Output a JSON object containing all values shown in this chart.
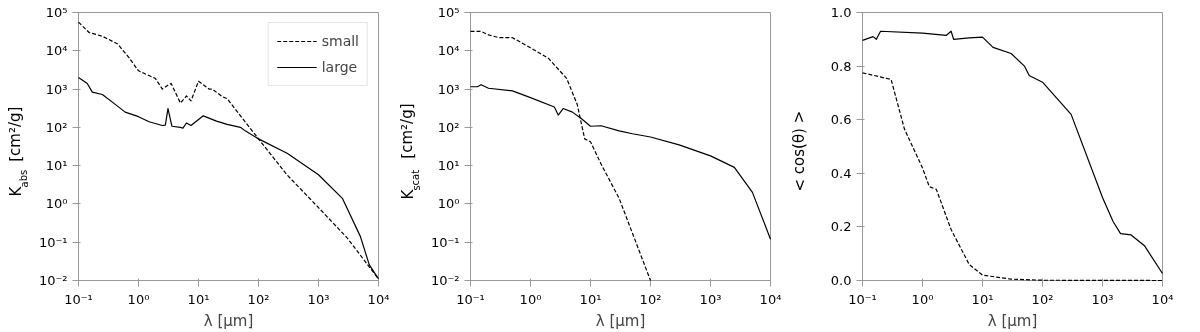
{
  "chart_data": [
    {
      "type": "line",
      "xlabel": "λ [μm]",
      "ylabel": "K$_{abs}$ [cm²/g]",
      "log": "xy",
      "legend": "top right",
      "xlim": [
        0.1,
        10000
      ],
      "ylim": [
        0.01,
        100000
      ],
      "xticks": [
        {
          "value": 0.1,
          "label": "10⁻¹"
        },
        {
          "value": 1,
          "label": "10⁰"
        },
        {
          "value": 10,
          "label": "10¹"
        },
        {
          "value": 100,
          "label": "10²"
        },
        {
          "value": 1000,
          "label": "10³"
        },
        {
          "value": 10000,
          "label": "10⁴"
        }
      ],
      "yticks": [
        {
          "value": 0.01,
          "label": "10⁻²"
        },
        {
          "value": 0.1,
          "label": "10⁻¹"
        },
        {
          "value": 1,
          "label": "10⁰"
        },
        {
          "value": 10,
          "label": "10¹"
        },
        {
          "value": 100,
          "label": "10²"
        },
        {
          "value": 1000,
          "label": "10³"
        },
        {
          "value": 10000,
          "label": "10⁴"
        },
        {
          "value": 100000,
          "label": "10⁵"
        }
      ],
      "series": [
        {
          "name": "small",
          "color": "#000000",
          "line_style": "dashed",
          "x": [
            0.1,
            0.15,
            0.25,
            0.45,
            0.7,
            1.0,
            1.9,
            2.5,
            3.2,
            3.5,
            5,
            6.3,
            7.5,
            10,
            15,
            17,
            25,
            30,
            100,
            300,
            1000,
            3000,
            10000
          ],
          "values": [
            56000,
            30000,
            24000,
            15000,
            6500,
            3000,
            1900,
            1000,
            1300,
            1400,
            430,
            660,
            490,
            1600,
            1000,
            1000,
            630,
            560,
            50,
            5.7,
            0.8,
            0.13,
            0.011
          ]
        },
        {
          "name": "large",
          "color": "#000000",
          "line_style": "solid",
          "x": [
            0.1,
            0.14,
            0.17,
            0.25,
            0.4,
            0.6,
            1,
            1.5,
            2.5,
            2.8,
            3.1,
            3.6,
            5,
            5.5,
            6.3,
            7.5,
            12,
            20,
            30,
            50,
            60,
            100,
            300,
            1000,
            2500,
            5000,
            7000,
            10000
          ],
          "values": [
            2000,
            1400,
            830,
            720,
            410,
            250,
            190,
            140,
            112,
            115,
            310,
            107,
            100,
            95,
            130,
            112,
            200,
            145,
            120,
            100,
            81,
            50,
            21,
            5.8,
            1.4,
            0.14,
            0.026,
            0.011
          ]
        }
      ]
    },
    {
      "type": "line",
      "xlabel": "λ [μm]",
      "ylabel": "K$_{scat}$ [cm²/g]",
      "log": "xy",
      "xlim": [
        0.1,
        10000
      ],
      "ylim": [
        0.01,
        100000
      ],
      "xticks": [
        {
          "value": 0.1,
          "label": "10⁻¹"
        },
        {
          "value": 1,
          "label": "10⁰"
        },
        {
          "value": 10,
          "label": "10¹"
        },
        {
          "value": 100,
          "label": "10²"
        },
        {
          "value": 1000,
          "label": "10³"
        },
        {
          "value": 10000,
          "label": "10⁴"
        }
      ],
      "yticks": [
        {
          "value": 0.01,
          "label": "10⁻²"
        },
        {
          "value": 0.1,
          "label": "10⁻¹"
        },
        {
          "value": 1,
          "label": "10⁰"
        },
        {
          "value": 10,
          "label": "10¹"
        },
        {
          "value": 100,
          "label": "10²"
        },
        {
          "value": 1000,
          "label": "10³"
        },
        {
          "value": 10000,
          "label": "10⁴"
        },
        {
          "value": 100000,
          "label": "10⁵"
        }
      ],
      "series": [
        {
          "color": "#000000",
          "line_style": "dashed",
          "x": [
            0.1,
            0.15,
            0.2,
            0.3,
            0.5,
            1,
            2,
            4,
            6,
            8,
            10,
            15,
            30,
            100
          ],
          "values": [
            32000,
            32000,
            26000,
            22000,
            22000,
            12000,
            6300,
            1900,
            400,
            50,
            42,
            11,
            1.4,
            0.01
          ]
        },
        {
          "color": "#000000",
          "line_style": "solid",
          "x": [
            0.1,
            0.13,
            0.15,
            0.2,
            0.5,
            1,
            2.5,
            2.9,
            3.5,
            5,
            7,
            10,
            15,
            30,
            50,
            100,
            300,
            1000,
            2500,
            5000,
            10000
          ],
          "values": [
            1150,
            1150,
            1300,
            1050,
            900,
            600,
            340,
            210,
            310,
            250,
            170,
            107,
            110,
            81,
            68,
            56,
            35,
            18,
            9,
            2,
            0.12
          ]
        }
      ]
    },
    {
      "type": "line",
      "xlabel": "λ [μm]",
      "ylabel": "< cos(θ) >",
      "log": "x",
      "xlim": [
        0.1,
        10000
      ],
      "ylim": [
        0,
        1
      ],
      "xticks": [
        {
          "value": 0.1,
          "label": "10⁻¹"
        },
        {
          "value": 1,
          "label": "10⁰"
        },
        {
          "value": 10,
          "label": "10¹"
        },
        {
          "value": 100,
          "label": "10²"
        },
        {
          "value": 1000,
          "label": "10³"
        },
        {
          "value": 10000,
          "label": "10⁴"
        }
      ],
      "yticks": [
        {
          "value": 0,
          "label": "0.0"
        },
        {
          "value": 0.2,
          "label": "0.2"
        },
        {
          "value": 0.4,
          "label": "0.4"
        },
        {
          "value": 0.6,
          "label": "0.6"
        },
        {
          "value": 0.8,
          "label": "0.8"
        },
        {
          "value": 1,
          "label": "1.0"
        }
      ],
      "series": [
        {
          "color": "#000000",
          "line_style": "dashed",
          "x": [
            0.1,
            0.3,
            0.5,
            1,
            1.3,
            1.7,
            3,
            6,
            10,
            30,
            100,
            10000
          ],
          "values": [
            0.775,
            0.75,
            0.565,
            0.42,
            0.35,
            0.34,
            0.19,
            0.06,
            0.02,
            0.005,
            0.001,
            0
          ]
        },
        {
          "color": "#000000",
          "line_style": "solid",
          "x": [
            0.1,
            0.15,
            0.17,
            0.2,
            1,
            2.5,
            3,
            3.3,
            6,
            10,
            15,
            30,
            50,
            60,
            100,
            300,
            1000,
            1500,
            2000,
            3000,
            5000,
            10000
          ],
          "values": [
            0.896,
            0.91,
            0.9,
            0.93,
            0.923,
            0.915,
            0.93,
            0.9,
            0.905,
            0.908,
            0.87,
            0.847,
            0.8,
            0.765,
            0.74,
            0.62,
            0.31,
            0.22,
            0.175,
            0.17,
            0.13,
            0.026
          ]
        }
      ]
    }
  ]
}
